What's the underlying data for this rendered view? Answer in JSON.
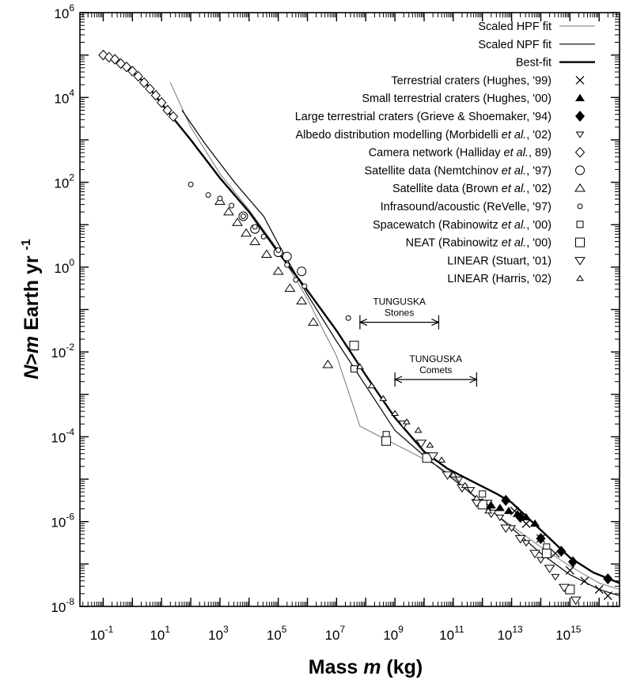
{
  "chart_data": {
    "type": "scatter",
    "xlabel": "Mass m (kg)",
    "ylabel": "N>m Earth yr -1",
    "xlim": [
      -1.8,
      16.7
    ],
    "ylim": [
      -8,
      6
    ],
    "log_x": true,
    "log_y": true,
    "x_ticks": [
      "10^-1",
      "10^1",
      "10^3",
      "10^5",
      "10^7",
      "10^9",
      "10^11",
      "10^13",
      "10^15"
    ],
    "y_ticks": [
      "10^-8",
      "10^-6",
      "10^-4",
      "10^-2",
      "10^0",
      "10^2",
      "10^4",
      "10^6"
    ],
    "grid": false,
    "legend_position": "top-right",
    "legend": [
      {
        "label": "Scaled HPF fit",
        "marker": "line-thin"
      },
      {
        "label": "Scaled NPF fit",
        "marker": "line-medium"
      },
      {
        "label": "Best-fit",
        "marker": "line-thick"
      },
      {
        "label": "Terrestrial craters (Hughes, '99)",
        "marker": "x"
      },
      {
        "label": "Small terrestrial craters (Hughes, '00)",
        "marker": "filled-triangle"
      },
      {
        "label": "Large terrestrial craters (Grieve & Shoemaker, '94)",
        "marker": "filled-diamond"
      },
      {
        "label": "Albedo distribution modelling (Morbidelli et al., '02)",
        "marker": "small-down-triangle"
      },
      {
        "label": "Camera network (Halliday et al., 89)",
        "marker": "diamond"
      },
      {
        "label": "Satellite data (Nemtchinov et al., '97)",
        "marker": "circle"
      },
      {
        "label": "Satellite data (Brown et al., '02)",
        "marker": "triangle"
      },
      {
        "label": "Infrasound/acoustic (ReVelle, '97)",
        "marker": "small-circle"
      },
      {
        "label": "Spacewatch (Rabinowitz et al., '00)",
        "marker": "small-square"
      },
      {
        "label": "NEAT (Rabinowitz et al., '00)",
        "marker": "square"
      },
      {
        "label": "LINEAR (Stuart, '01)",
        "marker": "down-triangle"
      },
      {
        "label": "LINEAR (Harris, '02)",
        "marker": "small-triangle"
      }
    ],
    "annotations": [
      {
        "label_lines": [
          "TUNGUSKA",
          "Stones"
        ],
        "x_range": [
          7.8,
          10.5
        ],
        "y": -1.3
      },
      {
        "label_lines": [
          "TUNGUSKA",
          "Comets"
        ],
        "x_range": [
          9.0,
          11.8
        ],
        "y": -2.65
      }
    ],
    "series": [
      {
        "name": "Scaled HPF fit",
        "style": "hpf",
        "points": [
          [
            1.3,
            4.35
          ],
          [
            2.0,
            3.3
          ],
          [
            3.0,
            2.2
          ],
          [
            4.0,
            1.35
          ],
          [
            5.0,
            0.4
          ],
          [
            6.0,
            -0.75
          ],
          [
            7.0,
            -2.1
          ],
          [
            7.8,
            -3.75
          ],
          [
            8.5,
            -4.0
          ],
          [
            9.5,
            -4.35
          ],
          [
            10.5,
            -4.7
          ],
          [
            11.0,
            -4.95
          ],
          [
            12.0,
            -5.6
          ],
          [
            13.0,
            -6.1
          ],
          [
            14.0,
            -6.6
          ],
          [
            15.0,
            -7.05
          ],
          [
            16.0,
            -7.45
          ],
          [
            16.7,
            -7.6
          ]
        ]
      },
      {
        "name": "Scaled NPF fit",
        "style": "npf",
        "points": [
          [
            1.7,
            3.7
          ],
          [
            2.5,
            2.9
          ],
          [
            3.5,
            2.0
          ],
          [
            4.5,
            1.2
          ],
          [
            5.0,
            0.55
          ],
          [
            6.0,
            -0.65
          ],
          [
            7.0,
            -1.75
          ],
          [
            8.0,
            -2.8
          ],
          [
            9.0,
            -3.85
          ],
          [
            10.0,
            -4.45
          ],
          [
            11.0,
            -5.0
          ],
          [
            12.0,
            -5.55
          ],
          [
            13.0,
            -6.15
          ],
          [
            14.0,
            -6.75
          ],
          [
            15.0,
            -7.25
          ],
          [
            16.0,
            -7.6
          ],
          [
            16.7,
            -7.75
          ]
        ]
      },
      {
        "name": "Best-fit",
        "style": "best",
        "points": [
          [
            -1.0,
            5.0
          ],
          [
            -0.5,
            4.85
          ],
          [
            0.0,
            4.6
          ],
          [
            0.5,
            4.3
          ],
          [
            1.0,
            3.85
          ],
          [
            2.0,
            3.0
          ],
          [
            3.0,
            2.1
          ],
          [
            4.0,
            1.3
          ],
          [
            5.0,
            0.35
          ],
          [
            6.0,
            -0.55
          ],
          [
            7.0,
            -1.5
          ],
          [
            8.0,
            -2.55
          ],
          [
            9.0,
            -3.55
          ],
          [
            10.0,
            -4.35
          ],
          [
            10.8,
            -4.75
          ],
          [
            11.5,
            -5.0
          ],
          [
            12.5,
            -5.35
          ],
          [
            13.0,
            -5.55
          ],
          [
            14.0,
            -6.2
          ],
          [
            15.0,
            -6.85
          ],
          [
            15.8,
            -7.2
          ],
          [
            16.7,
            -7.45
          ]
        ]
      },
      {
        "name": "Terrestrial craters (Hughes, '99)",
        "marker": "x",
        "points": [
          [
            13.1,
            -5.75
          ],
          [
            13.5,
            -6.05
          ],
          [
            14.0,
            -6.4
          ],
          [
            14.5,
            -6.75
          ],
          [
            15.0,
            -7.15
          ],
          [
            15.5,
            -7.4
          ],
          [
            16.0,
            -7.6
          ],
          [
            16.3,
            -7.75
          ]
        ]
      },
      {
        "name": "Small terrestrial craters (Hughes, '00)",
        "marker": "filled-triangle",
        "points": [
          [
            12.0,
            -5.55
          ],
          [
            12.3,
            -5.62
          ],
          [
            12.6,
            -5.68
          ],
          [
            12.9,
            -5.75
          ],
          [
            13.2,
            -5.82
          ],
          [
            13.5,
            -5.9
          ],
          [
            13.8,
            -6.05
          ]
        ]
      },
      {
        "name": "Large terrestrial craters (Grieve & Shoemaker, '94)",
        "marker": "filled-diamond",
        "points": [
          [
            12.8,
            -5.5
          ],
          [
            13.3,
            -5.9
          ],
          [
            14.0,
            -6.4
          ],
          [
            14.7,
            -6.7
          ],
          [
            15.1,
            -6.95
          ],
          [
            16.3,
            -7.35
          ]
        ]
      },
      {
        "name": "Albedo distribution modelling (Morbidelli et al., '02)",
        "marker": "small-down-triangle",
        "points": [
          [
            11.2,
            -5.0
          ],
          [
            11.6,
            -5.25
          ],
          [
            12.2,
            -5.55
          ],
          [
            12.6,
            -5.9
          ],
          [
            13.0,
            -6.15
          ],
          [
            13.5,
            -6.5
          ],
          [
            14.0,
            -6.9
          ],
          [
            14.5,
            -7.3
          ]
        ]
      },
      {
        "name": "Camera network (Halliday et al., 89)",
        "marker": "diamond",
        "points": [
          [
            -1.0,
            5.0
          ],
          [
            -0.8,
            4.95
          ],
          [
            -0.6,
            4.9
          ],
          [
            -0.4,
            4.8
          ],
          [
            -0.2,
            4.72
          ],
          [
            0.0,
            4.62
          ],
          [
            0.2,
            4.5
          ],
          [
            0.4,
            4.35
          ],
          [
            0.6,
            4.2
          ],
          [
            0.8,
            4.05
          ],
          [
            1.0,
            3.88
          ],
          [
            1.2,
            3.7
          ],
          [
            1.4,
            3.55
          ]
        ]
      },
      {
        "name": "Satellite data (Nemtchinov et al., '97)",
        "marker": "circle",
        "points": [
          [
            3.8,
            1.2
          ],
          [
            4.2,
            0.9
          ],
          [
            5.0,
            0.35
          ],
          [
            5.3,
            0.25
          ],
          [
            5.8,
            -0.1
          ]
        ]
      },
      {
        "name": "Satellite data (Brown et al., '02)",
        "marker": "triangle",
        "points": [
          [
            3.0,
            1.55
          ],
          [
            3.3,
            1.3
          ],
          [
            3.6,
            1.05
          ],
          [
            3.9,
            0.8
          ],
          [
            4.2,
            0.6
          ],
          [
            4.6,
            0.3
          ],
          [
            5.0,
            -0.1
          ],
          [
            5.4,
            -0.5
          ],
          [
            5.8,
            -0.8
          ],
          [
            6.2,
            -1.3
          ],
          [
            6.7,
            -2.3
          ]
        ]
      },
      {
        "name": "Infrasound/acoustic (ReVelle, '97)",
        "marker": "small-circle",
        "points": [
          [
            2.0,
            1.95
          ],
          [
            2.6,
            1.7
          ],
          [
            3.0,
            1.62
          ],
          [
            3.4,
            1.45
          ],
          [
            3.8,
            1.2
          ],
          [
            4.2,
            0.95
          ],
          [
            4.5,
            0.72
          ],
          [
            5.0,
            0.4
          ],
          [
            5.3,
            0.05
          ],
          [
            5.6,
            -0.3
          ],
          [
            5.9,
            -0.45
          ],
          [
            7.4,
            -1.2
          ]
        ]
      },
      {
        "name": "Spacewatch (Rabinowitz et al., '00)",
        "marker": "small-square",
        "points": [
          [
            7.6,
            -2.4
          ],
          [
            8.7,
            -3.95
          ],
          [
            10.1,
            -4.45
          ],
          [
            12.0,
            -5.35
          ],
          [
            14.2,
            -6.6
          ]
        ]
      },
      {
        "name": "NEAT (Rabinowitz et al., '00)",
        "marker": "square",
        "points": [
          [
            7.6,
            -1.85
          ],
          [
            8.7,
            -4.1
          ],
          [
            10.1,
            -4.5
          ],
          [
            12.0,
            -5.6
          ],
          [
            14.2,
            -6.75
          ],
          [
            15.0,
            -7.6
          ]
        ]
      },
      {
        "name": "LINEAR (Stuart, '01)",
        "marker": "down-triangle",
        "points": [
          [
            9.3,
            -3.7
          ],
          [
            9.9,
            -4.15
          ],
          [
            10.3,
            -4.45
          ],
          [
            10.8,
            -4.9
          ],
          [
            11.3,
            -5.2
          ],
          [
            11.8,
            -5.55
          ],
          [
            12.3,
            -5.8
          ],
          [
            12.8,
            -6.15
          ],
          [
            13.3,
            -6.4
          ],
          [
            13.8,
            -6.75
          ],
          [
            14.3,
            -7.1
          ],
          [
            14.8,
            -7.55
          ],
          [
            15.2,
            -7.85
          ]
        ]
      },
      {
        "name": "LINEAR (Harris, '02)",
        "marker": "small-triangle",
        "points": [
          [
            7.8,
            -2.35
          ],
          [
            8.2,
            -2.8
          ],
          [
            8.6,
            -3.1
          ],
          [
            9.0,
            -3.45
          ],
          [
            9.4,
            -3.65
          ],
          [
            9.8,
            -3.85
          ],
          [
            10.2,
            -4.2
          ],
          [
            10.6,
            -4.55
          ],
          [
            11.0,
            -4.9
          ],
          [
            11.4,
            -5.15
          ],
          [
            11.8,
            -5.45
          ],
          [
            12.2,
            -5.75
          ]
        ]
      }
    ]
  }
}
